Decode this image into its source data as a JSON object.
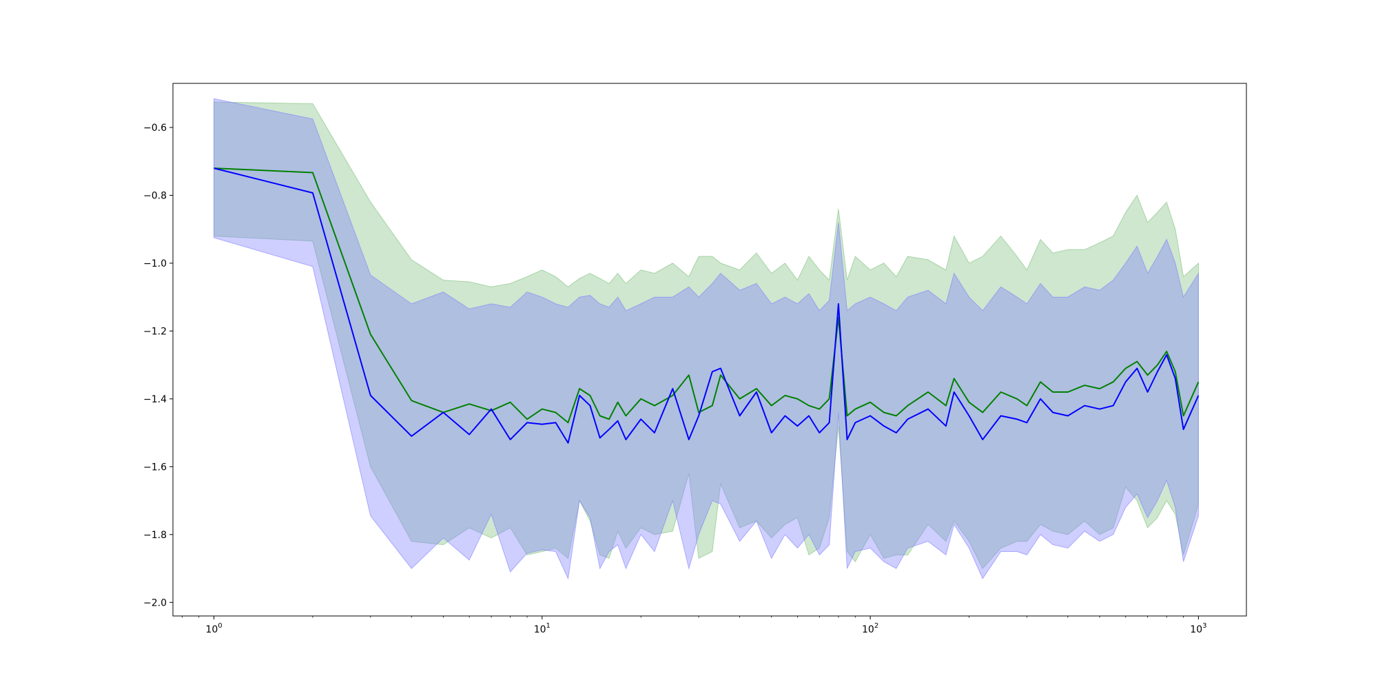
{
  "chart_data": {
    "type": "line",
    "title": "",
    "xlabel": "",
    "ylabel": "",
    "x_scale": "log",
    "xlim": [
      0.75,
      1400
    ],
    "ylim": [
      -2.04,
      -0.47
    ],
    "grid": false,
    "legend": "none",
    "x_ticks": [
      {
        "value": 1,
        "base": "10",
        "exp": "0"
      },
      {
        "value": 10,
        "base": "10",
        "exp": "1"
      },
      {
        "value": 100,
        "base": "10",
        "exp": "2"
      },
      {
        "value": 1000,
        "base": "10",
        "exp": "3"
      }
    ],
    "y_ticks": [
      {
        "value": -0.6,
        "label": "−0.6"
      },
      {
        "value": -0.8,
        "label": "−0.8"
      },
      {
        "value": -1.0,
        "label": "−1.0"
      },
      {
        "value": -1.2,
        "label": "−1.2"
      },
      {
        "value": -1.4,
        "label": "−1.4"
      },
      {
        "value": -1.6,
        "label": "−1.6"
      },
      {
        "value": -1.8,
        "label": "−1.8"
      },
      {
        "value": -2.0,
        "label": "−2.0"
      }
    ],
    "series": [
      {
        "color": "#008000",
        "band_color": "#7fbf7f",
        "band_opacity": 0.38,
        "x": [
          1,
          2,
          3,
          4,
          5,
          6,
          7,
          8,
          9,
          10,
          11,
          12,
          13,
          14,
          15,
          16,
          17,
          18,
          20,
          22,
          25,
          28,
          30,
          33,
          35,
          40,
          45,
          50,
          55,
          60,
          65,
          70,
          75,
          80,
          85,
          90,
          100,
          110,
          120,
          130,
          150,
          170,
          180,
          200,
          220,
          250,
          280,
          300,
          330,
          360,
          400,
          450,
          500,
          550,
          600,
          650,
          700,
          750,
          800,
          850,
          900,
          1000
        ],
        "mean": [
          -0.72,
          -0.733,
          -1.21,
          -1.405,
          -1.44,
          -1.415,
          -1.435,
          -1.41,
          -1.46,
          -1.43,
          -1.44,
          -1.47,
          -1.37,
          -1.39,
          -1.45,
          -1.46,
          -1.41,
          -1.45,
          -1.4,
          -1.42,
          -1.39,
          -1.33,
          -1.44,
          -1.42,
          -1.33,
          -1.4,
          -1.37,
          -1.42,
          -1.39,
          -1.4,
          -1.42,
          -1.43,
          -1.4,
          -1.16,
          -1.45,
          -1.43,
          -1.41,
          -1.44,
          -1.45,
          -1.42,
          -1.38,
          -1.42,
          -1.34,
          -1.41,
          -1.44,
          -1.38,
          -1.4,
          -1.42,
          -1.35,
          -1.38,
          -1.38,
          -1.36,
          -1.37,
          -1.35,
          -1.31,
          -1.29,
          -1.33,
          -1.3,
          -1.26,
          -1.32,
          -1.45,
          -1.35
        ],
        "upper": [
          -0.525,
          -0.53,
          -0.82,
          -0.99,
          -1.05,
          -1.055,
          -1.07,
          -1.06,
          -1.04,
          -1.02,
          -1.04,
          -1.07,
          -1.045,
          -1.03,
          -1.045,
          -1.06,
          -1.03,
          -1.06,
          -1.02,
          -1.03,
          -1.0,
          -1.04,
          -0.98,
          -0.98,
          -1.0,
          -1.02,
          -0.97,
          -1.03,
          -1.0,
          -1.05,
          -0.98,
          -1.02,
          -1.05,
          -0.84,
          -1.05,
          -0.98,
          -1.02,
          -1.0,
          -1.04,
          -0.98,
          -0.99,
          -1.02,
          -0.92,
          -1.0,
          -0.98,
          -0.92,
          -0.98,
          -1.02,
          -0.93,
          -0.97,
          -0.96,
          -0.96,
          -0.94,
          -0.92,
          -0.85,
          -0.8,
          -0.88,
          -0.85,
          -0.82,
          -0.9,
          -1.04,
          -1.0
        ],
        "lower": [
          -0.92,
          -0.935,
          -1.6,
          -1.82,
          -1.83,
          -1.78,
          -1.81,
          -1.78,
          -1.86,
          -1.85,
          -1.84,
          -1.87,
          -1.7,
          -1.76,
          -1.86,
          -1.87,
          -1.79,
          -1.84,
          -1.78,
          -1.8,
          -1.79,
          -1.62,
          -1.87,
          -1.85,
          -1.65,
          -1.78,
          -1.76,
          -1.81,
          -1.77,
          -1.75,
          -1.86,
          -1.84,
          -1.75,
          -1.48,
          -1.85,
          -1.88,
          -1.8,
          -1.87,
          -1.86,
          -1.86,
          -1.77,
          -1.82,
          -1.76,
          -1.82,
          -1.9,
          -1.84,
          -1.82,
          -1.82,
          -1.77,
          -1.79,
          -1.8,
          -1.76,
          -1.8,
          -1.78,
          -1.66,
          -1.7,
          -1.78,
          -1.75,
          -1.7,
          -1.74,
          -1.86,
          -1.71
        ]
      },
      {
        "color": "#0000ff",
        "band_color": "#7f7fff",
        "band_opacity": 0.38,
        "x": [
          1,
          2,
          3,
          4,
          5,
          6,
          7,
          8,
          9,
          10,
          11,
          12,
          13,
          14,
          15,
          16,
          17,
          18,
          20,
          22,
          25,
          28,
          30,
          33,
          35,
          40,
          45,
          50,
          55,
          60,
          65,
          70,
          75,
          80,
          85,
          90,
          100,
          110,
          120,
          130,
          150,
          170,
          180,
          200,
          220,
          250,
          280,
          300,
          330,
          360,
          400,
          450,
          500,
          550,
          600,
          650,
          700,
          750,
          800,
          850,
          900,
          1000
        ],
        "mean": [
          -0.72,
          -0.793,
          -1.39,
          -1.51,
          -1.44,
          -1.505,
          -1.43,
          -1.52,
          -1.47,
          -1.475,
          -1.47,
          -1.53,
          -1.39,
          -1.42,
          -1.515,
          -1.49,
          -1.465,
          -1.52,
          -1.46,
          -1.5,
          -1.37,
          -1.52,
          -1.45,
          -1.32,
          -1.31,
          -1.45,
          -1.38,
          -1.5,
          -1.45,
          -1.48,
          -1.45,
          -1.5,
          -1.47,
          -1.12,
          -1.52,
          -1.47,
          -1.45,
          -1.48,
          -1.5,
          -1.46,
          -1.43,
          -1.48,
          -1.38,
          -1.45,
          -1.52,
          -1.45,
          -1.46,
          -1.47,
          -1.4,
          -1.44,
          -1.45,
          -1.42,
          -1.43,
          -1.42,
          -1.35,
          -1.31,
          -1.38,
          -1.32,
          -1.27,
          -1.34,
          -1.49,
          -1.39
        ],
        "upper": [
          -0.515,
          -0.575,
          -1.035,
          -1.12,
          -1.085,
          -1.135,
          -1.12,
          -1.13,
          -1.085,
          -1.1,
          -1.12,
          -1.13,
          -1.1,
          -1.095,
          -1.12,
          -1.13,
          -1.1,
          -1.14,
          -1.12,
          -1.1,
          -1.1,
          -1.07,
          -1.1,
          -1.06,
          -1.03,
          -1.08,
          -1.06,
          -1.12,
          -1.1,
          -1.12,
          -1.09,
          -1.14,
          -1.11,
          -0.88,
          -1.14,
          -1.12,
          -1.1,
          -1.12,
          -1.14,
          -1.1,
          -1.08,
          -1.12,
          -1.03,
          -1.1,
          -1.14,
          -1.07,
          -1.1,
          -1.12,
          -1.06,
          -1.1,
          -1.1,
          -1.07,
          -1.08,
          -1.05,
          -1.0,
          -0.95,
          -1.03,
          -0.98,
          -0.93,
          -1.0,
          -1.1,
          -1.03
        ],
        "lower": [
          -0.925,
          -1.01,
          -1.745,
          -1.9,
          -1.81,
          -1.875,
          -1.74,
          -1.91,
          -1.855,
          -1.845,
          -1.85,
          -1.93,
          -1.7,
          -1.75,
          -1.9,
          -1.85,
          -1.83,
          -1.9,
          -1.8,
          -1.85,
          -1.7,
          -1.9,
          -1.8,
          -1.7,
          -1.71,
          -1.82,
          -1.76,
          -1.87,
          -1.8,
          -1.84,
          -1.8,
          -1.86,
          -1.83,
          -1.44,
          -1.9,
          -1.85,
          -1.84,
          -1.88,
          -1.9,
          -1.84,
          -1.82,
          -1.86,
          -1.77,
          -1.84,
          -1.93,
          -1.85,
          -1.85,
          -1.86,
          -1.8,
          -1.83,
          -1.84,
          -1.79,
          -1.82,
          -1.8,
          -1.72,
          -1.68,
          -1.75,
          -1.7,
          -1.64,
          -1.72,
          -1.88,
          -1.745
        ]
      }
    ]
  }
}
